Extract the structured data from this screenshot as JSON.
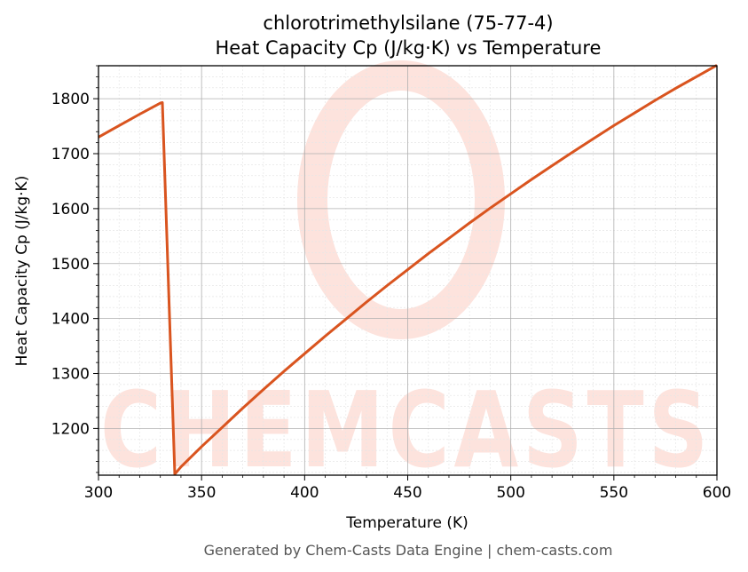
{
  "chart_data": {
    "type": "line",
    "title": "chlorotrimethylsilane (75-77-4)",
    "subtitle": "Heat Capacity Cp (J/kg·K) vs Temperature",
    "xlabel": "Temperature (K)",
    "ylabel": "Heat Capacity Cp (J/kg·K)",
    "xlim": [
      300,
      600
    ],
    "ylim": [
      1115,
      1860
    ],
    "xticks": [
      300,
      350,
      400,
      450,
      500,
      550,
      600
    ],
    "yticks": [
      1200,
      1300,
      1400,
      1500,
      1600,
      1700,
      1800
    ],
    "grid": true,
    "color": "#d9541f",
    "series": [
      {
        "x": [
          300,
          310,
          320,
          330,
          331,
          337,
          340,
          350,
          360,
          370,
          380,
          390,
          400,
          410,
          420,
          430,
          440,
          450,
          460,
          470,
          480,
          490,
          500,
          510,
          520,
          530,
          540,
          550,
          560,
          570,
          580,
          590,
          600
        ],
        "values": [
          1730,
          1751,
          1772,
          1792,
          1793,
          1117,
          1130,
          1167,
          1202,
          1237,
          1271,
          1304,
          1336,
          1368,
          1399,
          1430,
          1460,
          1489,
          1518,
          1546,
          1574,
          1601,
          1627,
          1653,
          1678,
          1703,
          1727,
          1751,
          1774,
          1797,
          1819,
          1840,
          1861
        ]
      }
    ]
  },
  "watermark": "CHEMCASTS",
  "footer": "Generated by Chem-Casts Data Engine | chem-casts.com"
}
